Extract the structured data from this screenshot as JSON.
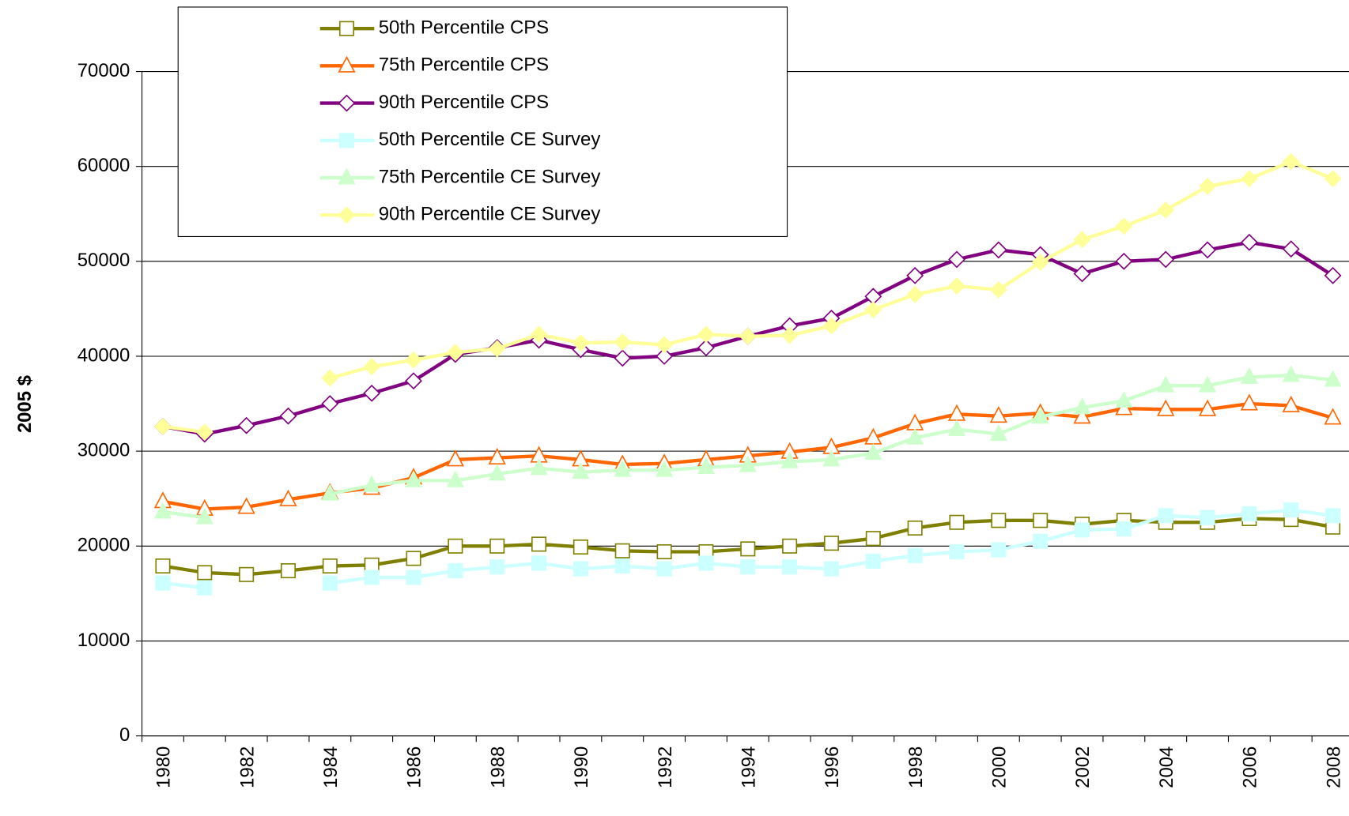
{
  "chart_data": {
    "type": "line",
    "y_label": "2005 $",
    "categories": [
      "1980",
      null,
      "1982",
      null,
      "1984",
      null,
      "1986",
      null,
      "1988",
      null,
      "1990",
      null,
      "1992",
      null,
      "1994",
      null,
      "1996",
      null,
      "1998",
      null,
      "2000",
      null,
      "2002",
      null,
      "2004",
      null,
      "2006",
      null,
      "2008"
    ],
    "ylim": [
      0,
      70000
    ],
    "yticks": [
      0,
      10000,
      20000,
      30000,
      40000,
      50000,
      60000,
      70000
    ],
    "grid": true,
    "legend": "upper left",
    "series": [
      {
        "name": "50th Percentile CPS",
        "color": "#808000",
        "marker": "square",
        "filled": false,
        "values": [
          17900,
          17200,
          17000,
          17400,
          17900,
          18000,
          18700,
          20000,
          20000,
          20200,
          19900,
          19500,
          19400,
          19400,
          19700,
          20000,
          20300,
          20800,
          21900,
          22500,
          22700,
          22700,
          22300,
          22700,
          22500,
          22500,
          22900,
          22800,
          22000
        ]
      },
      {
        "name": "75th Percentile CPS",
        "color": "#ff6600",
        "marker": "triangle",
        "filled": false,
        "values": [
          24700,
          23900,
          24100,
          24900,
          25600,
          26100,
          27200,
          29100,
          29300,
          29500,
          29100,
          28600,
          28700,
          29100,
          29500,
          29900,
          30400,
          31400,
          32900,
          33900,
          33700,
          34000,
          33600,
          34500,
          34400,
          34400,
          35000,
          34800,
          33500
        ]
      },
      {
        "name": "90th Percentile CPS",
        "color": "#800080",
        "marker": "diamond",
        "filled": false,
        "values": [
          32600,
          31800,
          32700,
          33700,
          35000,
          36100,
          37400,
          40200,
          40900,
          41700,
          40700,
          39800,
          40000,
          40900,
          42100,
          43200,
          44000,
          46300,
          48500,
          50200,
          51200,
          50700,
          48700,
          50000,
          50200,
          51200,
          52000,
          51300,
          48500
        ]
      },
      {
        "name": "50th Percentile CE Survey",
        "color": "#ccffff",
        "marker": "square",
        "filled": true,
        "values": [
          16100,
          15600,
          null,
          null,
          16100,
          16700,
          16700,
          17400,
          17800,
          18200,
          17600,
          17900,
          17600,
          18200,
          17800,
          17800,
          17600,
          18400,
          19000,
          19400,
          19600,
          20500,
          21700,
          21800,
          23200,
          23000,
          23400,
          23800,
          23200
        ]
      },
      {
        "name": "75th Percentile CE Survey",
        "color": "#ccffcc",
        "marker": "triangle",
        "filled": true,
        "values": [
          23600,
          23000,
          null,
          null,
          25500,
          26400,
          26900,
          26900,
          27600,
          28200,
          27800,
          28000,
          28000,
          28300,
          28500,
          28900,
          29100,
          29800,
          31400,
          32300,
          31800,
          33600,
          34600,
          35300,
          36900,
          36900,
          37800,
          38000,
          37500
        ]
      },
      {
        "name": "90th Percentile CE Survey",
        "color": "#ffff99",
        "marker": "diamond",
        "filled": true,
        "values": [
          32600,
          32000,
          null,
          null,
          37700,
          38900,
          39600,
          40400,
          40800,
          42300,
          41400,
          41500,
          41200,
          42300,
          42100,
          42200,
          43200,
          44900,
          46500,
          47400,
          47000,
          49900,
          52300,
          53700,
          55400,
          57900,
          58700,
          60500,
          58700
        ]
      }
    ]
  }
}
